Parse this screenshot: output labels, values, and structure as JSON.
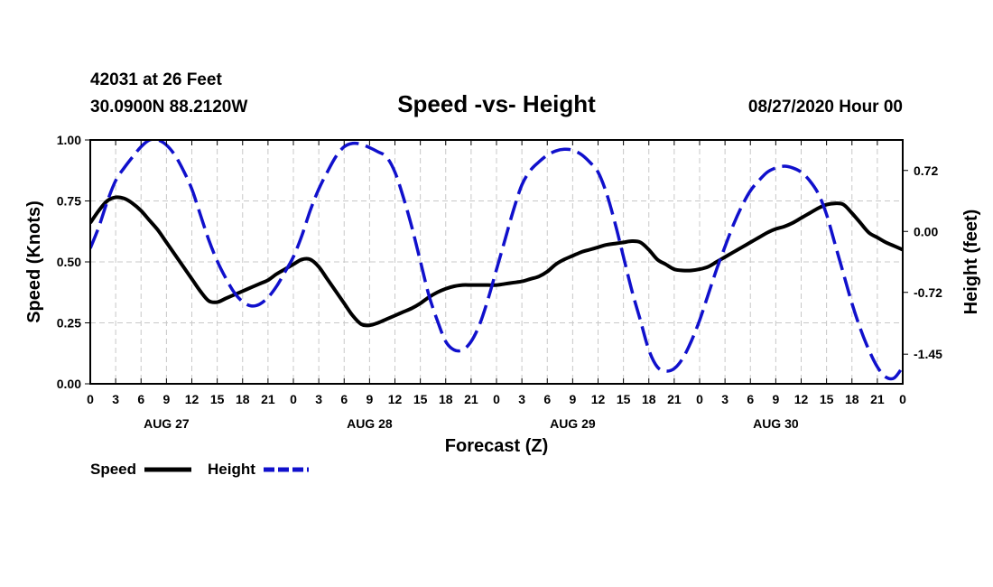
{
  "header": {
    "station": "42031 at 26 Feet",
    "coords": "30.0900N 88.2120W",
    "title": "Speed -vs- Height",
    "datetime": "08/27/2020 Hour 00"
  },
  "chart_data": {
    "type": "line",
    "title": "Speed -vs- Height",
    "xlabel": "Forecast (Z)",
    "ylabel": "Speed (Knots)",
    "y2label": "Height (feet)",
    "xlim": [
      0,
      96
    ],
    "ylim": [
      0,
      1.0
    ],
    "y2lim": [
      -1.8,
      1.08
    ],
    "yticks": [
      "0.00",
      "0.25",
      "0.50",
      "0.75",
      "1.00"
    ],
    "yticks_values": [
      0,
      0.25,
      0.5,
      0.75,
      1.0
    ],
    "y2ticks": [
      "-1.45",
      "-0.72",
      "0.00",
      "0.72"
    ],
    "y2ticks_values": [
      -1.45,
      -0.72,
      0,
      0.72
    ],
    "xticks": [
      "0",
      "3",
      "6",
      "9",
      "12",
      "15",
      "18",
      "21",
      "0",
      "3",
      "6",
      "9",
      "12",
      "15",
      "18",
      "21",
      "0",
      "3",
      "6",
      "9",
      "12",
      "15",
      "18",
      "21",
      "0",
      "3",
      "6",
      "9",
      "12",
      "15",
      "18",
      "21",
      "0"
    ],
    "xticks_values": [
      0,
      3,
      6,
      9,
      12,
      15,
      18,
      21,
      24,
      27,
      30,
      33,
      36,
      39,
      42,
      45,
      48,
      51,
      54,
      57,
      60,
      63,
      66,
      69,
      72,
      75,
      78,
      81,
      84,
      87,
      90,
      93,
      96
    ],
    "day_labels": [
      {
        "text": "AUG 27",
        "hour": 9
      },
      {
        "text": "AUG 28",
        "hour": 33
      },
      {
        "text": "AUG 29",
        "hour": 57
      },
      {
        "text": "AUG 30",
        "hour": 81
      }
    ],
    "grid": true,
    "series": [
      {
        "name": "Speed",
        "axis": "left",
        "color": "#000000",
        "dash": "solid",
        "x": [
          0,
          1,
          2,
          3,
          4,
          5,
          6,
          7,
          8,
          9,
          10,
          11,
          12,
          13,
          14,
          15,
          16,
          17,
          18,
          19,
          20,
          21,
          22,
          23,
          24,
          25,
          26,
          27,
          28,
          29,
          30,
          31,
          32,
          33,
          34,
          35,
          36,
          37,
          38,
          39,
          40,
          41,
          42,
          43,
          44,
          45,
          46,
          47,
          48,
          49,
          50,
          51,
          52,
          53,
          54,
          55,
          56,
          57,
          58,
          59,
          60,
          61,
          62,
          63,
          64,
          65,
          66,
          67,
          68,
          69,
          70,
          71,
          72,
          73,
          74,
          75,
          76,
          77,
          78,
          79,
          80,
          81,
          82,
          83,
          84,
          85,
          86,
          87,
          88,
          89,
          90,
          91,
          92,
          93,
          94,
          95,
          96
        ],
        "values": [
          0.66,
          0.71,
          0.75,
          0.765,
          0.76,
          0.74,
          0.71,
          0.67,
          0.63,
          0.58,
          0.53,
          0.48,
          0.43,
          0.38,
          0.34,
          0.335,
          0.35,
          0.365,
          0.38,
          0.395,
          0.41,
          0.425,
          0.45,
          0.47,
          0.49,
          0.51,
          0.51,
          0.48,
          0.43,
          0.38,
          0.33,
          0.28,
          0.245,
          0.24,
          0.25,
          0.265,
          0.28,
          0.295,
          0.31,
          0.33,
          0.355,
          0.375,
          0.39,
          0.4,
          0.405,
          0.405,
          0.405,
          0.405,
          0.405,
          0.41,
          0.415,
          0.42,
          0.43,
          0.44,
          0.46,
          0.49,
          0.51,
          0.525,
          0.54,
          0.55,
          0.56,
          0.57,
          0.575,
          0.58,
          0.585,
          0.58,
          0.55,
          0.51,
          0.49,
          0.47,
          0.465,
          0.465,
          0.47,
          0.48,
          0.5,
          0.52,
          0.54,
          0.56,
          0.58,
          0.6,
          0.62,
          0.635,
          0.645,
          0.66,
          0.68,
          0.7,
          0.72,
          0.735,
          0.74,
          0.735,
          0.7,
          0.66,
          0.62,
          0.6,
          0.58,
          0.565,
          0.55
        ]
      },
      {
        "name": "Height",
        "axis": "right",
        "color": "#1010cc",
        "dash": "dashed",
        "x": [
          0,
          1,
          2,
          3,
          4,
          5,
          6,
          7,
          8,
          9,
          10,
          11,
          12,
          13,
          14,
          15,
          16,
          17,
          18,
          19,
          20,
          21,
          22,
          23,
          24,
          25,
          26,
          27,
          28,
          29,
          30,
          31,
          32,
          33,
          34,
          35,
          36,
          37,
          38,
          39,
          40,
          41,
          42,
          43,
          44,
          45,
          46,
          47,
          48,
          49,
          50,
          51,
          52,
          53,
          54,
          55,
          56,
          57,
          58,
          59,
          60,
          61,
          62,
          63,
          64,
          65,
          66,
          67,
          68,
          69,
          70,
          71,
          72,
          73,
          74,
          75,
          76,
          77,
          78,
          79,
          80,
          81,
          82,
          83,
          84,
          85,
          86,
          87,
          88,
          89,
          90,
          91,
          92,
          93,
          94,
          95,
          96
        ],
        "values": [
          -0.2,
          0.05,
          0.35,
          0.6,
          0.75,
          0.88,
          1.0,
          1.08,
          1.08,
          1.02,
          0.9,
          0.72,
          0.5,
          0.2,
          -0.1,
          -0.35,
          -0.55,
          -0.72,
          -0.83,
          -0.88,
          -0.86,
          -0.78,
          -0.65,
          -0.48,
          -0.3,
          -0.05,
          0.25,
          0.5,
          0.7,
          0.88,
          1.0,
          1.04,
          1.03,
          0.99,
          0.94,
          0.88,
          0.7,
          0.4,
          0.05,
          -0.35,
          -0.75,
          -1.05,
          -1.3,
          -1.4,
          -1.4,
          -1.3,
          -1.1,
          -0.8,
          -0.45,
          -0.1,
          0.25,
          0.55,
          0.72,
          0.82,
          0.9,
          0.95,
          0.97,
          0.96,
          0.91,
          0.82,
          0.7,
          0.45,
          0.1,
          -0.3,
          -0.7,
          -1.05,
          -1.4,
          -1.6,
          -1.65,
          -1.62,
          -1.5,
          -1.3,
          -1.05,
          -0.75,
          -0.45,
          -0.18,
          0.08,
          0.3,
          0.48,
          0.6,
          0.7,
          0.75,
          0.77,
          0.75,
          0.7,
          0.6,
          0.45,
          0.2,
          -0.15,
          -0.5,
          -0.85,
          -1.15,
          -1.4,
          -1.6,
          -1.72,
          -1.73,
          -1.6
        ]
      }
    ]
  },
  "legend": {
    "speed_label": "Speed",
    "height_label": "Height"
  }
}
